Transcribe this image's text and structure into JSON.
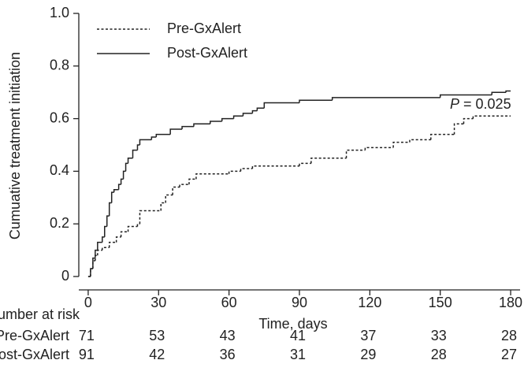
{
  "chart_data": {
    "type": "step",
    "y_label": "Cumuative treatment initiation",
    "x_label": "Time, days",
    "annotation": [
      "P",
      " = 0.025"
    ],
    "xlim": [
      -4,
      183
    ],
    "xticks": [
      0,
      30,
      60,
      90,
      120,
      150,
      180
    ],
    "ylim": [
      0,
      1
    ],
    "yticks": [
      0,
      0.2,
      0.4,
      0.6,
      0.8,
      {
        "value": 1,
        "label": "1.0"
      }
    ],
    "legend": "top-left",
    "series": [
      {
        "name": "Pre-GxAlert",
        "color": "#222222",
        "dash": true,
        "x": [
          0,
          1,
          2,
          3,
          4,
          6,
          9,
          12,
          14,
          17,
          21,
          22,
          31,
          33,
          36,
          39,
          43,
          46,
          60,
          65,
          70,
          90,
          95,
          110,
          118,
          130,
          137,
          146,
          156,
          160,
          164,
          180
        ],
        "values": [
          0,
          0.03,
          0.06,
          0.08,
          0.1,
          0.11,
          0.13,
          0.15,
          0.17,
          0.19,
          0.2,
          0.25,
          0.28,
          0.31,
          0.34,
          0.35,
          0.37,
          0.39,
          0.4,
          0.41,
          0.42,
          0.43,
          0.45,
          0.48,
          0.49,
          0.51,
          0.52,
          0.54,
          0.58,
          0.6,
          0.61,
          0.61
        ]
      },
      {
        "name": "Post-GxAlert",
        "color": "#222222",
        "dash": false,
        "x": [
          0,
          1,
          2,
          3,
          4,
          6,
          7,
          8,
          9,
          10,
          11,
          13,
          14,
          15,
          16,
          17,
          19,
          21,
          22,
          27,
          29,
          35,
          40,
          45,
          52,
          57,
          62,
          66,
          70,
          72,
          75,
          90,
          104,
          150,
          172,
          178,
          180
        ],
        "values": [
          0,
          0.03,
          0.07,
          0.1,
          0.13,
          0.15,
          0.19,
          0.23,
          0.28,
          0.32,
          0.33,
          0.35,
          0.37,
          0.4,
          0.43,
          0.45,
          0.48,
          0.5,
          0.52,
          0.53,
          0.54,
          0.56,
          0.57,
          0.58,
          0.59,
          0.6,
          0.61,
          0.62,
          0.63,
          0.64,
          0.66,
          0.67,
          0.68,
          0.69,
          0.7,
          0.705,
          0.705
        ]
      }
    ],
    "risk_table": {
      "title": "Number at risk",
      "rows": [
        {
          "label": "Pre-GxAlert",
          "values": [
            71,
            53,
            43,
            41,
            37,
            33,
            28
          ]
        },
        {
          "label": "Post-GxAlert",
          "values": [
            91,
            42,
            36,
            31,
            29,
            28,
            27
          ]
        }
      ]
    }
  }
}
